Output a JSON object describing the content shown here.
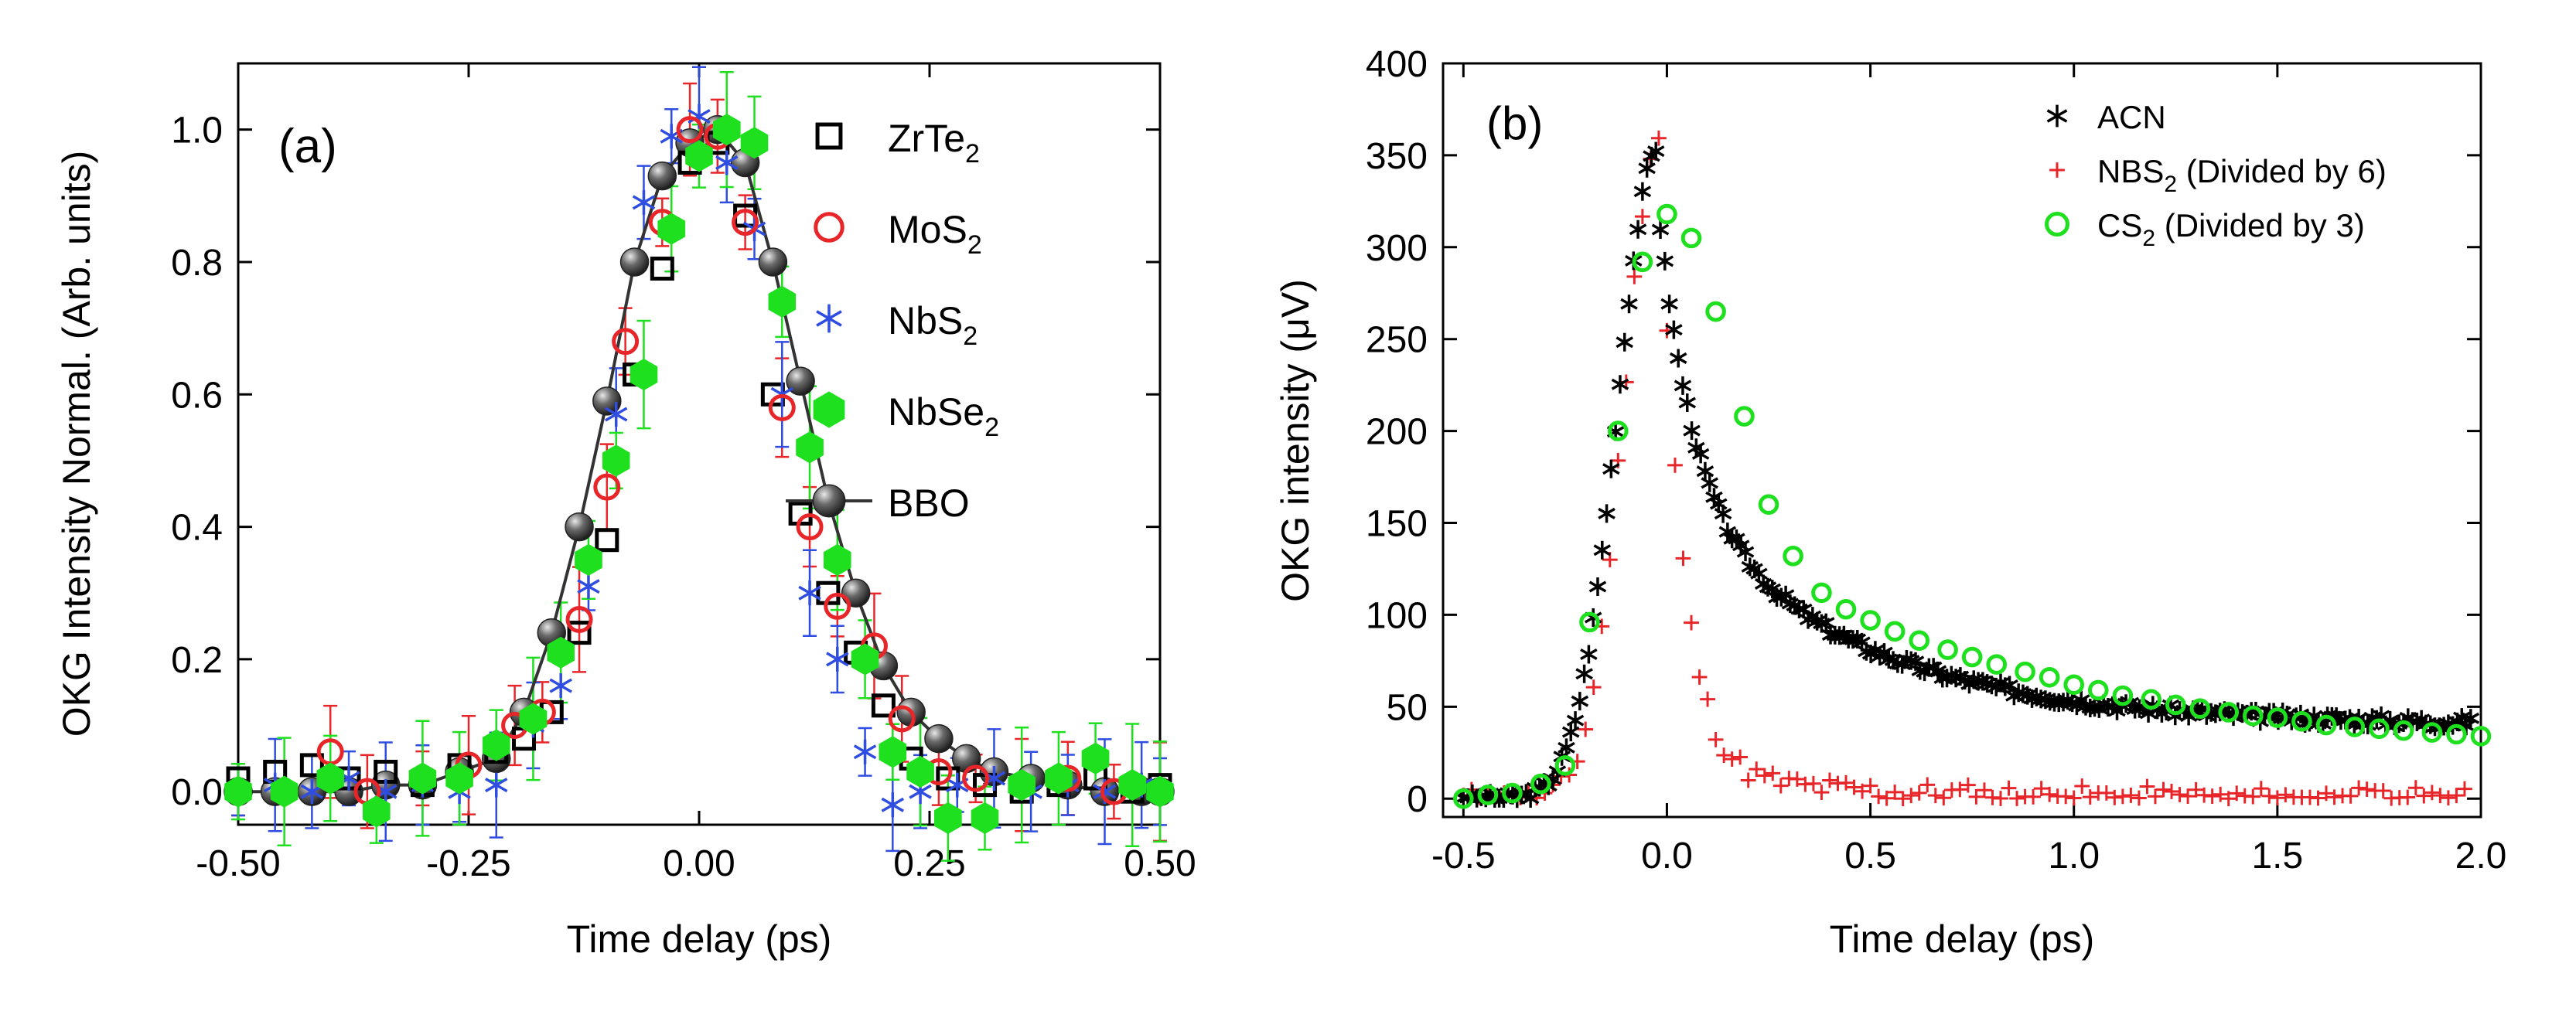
{
  "colors": {
    "black": "#000000",
    "red": "#e8262a",
    "blue": "#2f4de0",
    "green": "#1ee01e",
    "bbo": "#4a4a4a",
    "bboHi": "#cfcfcf"
  },
  "chart_data": [
    {
      "type": "scatter",
      "panel_label": "(a)",
      "xlabel": "Time delay (ps)",
      "ylabel": "OKG Intensity Normal. (Arb. units)",
      "xlim": [
        -0.5,
        0.5
      ],
      "ylim": [
        -0.05,
        1.1
      ],
      "xticks": [
        -0.5,
        -0.25,
        0.0,
        0.25,
        0.5
      ],
      "xtick_labels": [
        "-0.50",
        "-0.25",
        "0.00",
        "0.25",
        "0.50"
      ],
      "yticks": [
        0.0,
        0.2,
        0.4,
        0.6,
        0.8,
        1.0
      ],
      "ytick_labels": [
        "0.0",
        "0.2",
        "0.4",
        "0.6",
        "0.8",
        "1.0"
      ],
      "legend": [
        {
          "name": "ZrTe",
          "sub": "2",
          "marker": "open-square"
        },
        {
          "name": "MoS",
          "sub": "2",
          "marker": "open-circle"
        },
        {
          "name": "NbS",
          "sub": "2",
          "marker": "asterisk"
        },
        {
          "name": "NbSe",
          "sub": "2",
          "marker": "filled-hexagon"
        },
        {
          "name": "BBO",
          "sub": "",
          "marker": "sphere-line"
        }
      ],
      "series": [
        {
          "name": "ZrTe2",
          "marker": "open-square",
          "color": "#000000",
          "x": [
            -0.5,
            -0.46,
            -0.42,
            -0.38,
            -0.34,
            -0.3,
            -0.26,
            -0.22,
            -0.19,
            -0.16,
            -0.13,
            -0.1,
            -0.07,
            -0.04,
            -0.01,
            0.02,
            0.05,
            0.08,
            0.11,
            0.14,
            0.17,
            0.2,
            0.23,
            0.27,
            0.31,
            0.35,
            0.39,
            0.43,
            0.47,
            0.5
          ],
          "y": [
            0.02,
            0.03,
            0.04,
            0.02,
            0.03,
            0.01,
            0.04,
            0.06,
            0.08,
            0.12,
            0.24,
            0.38,
            0.63,
            0.79,
            0.95,
            0.98,
            0.87,
            0.6,
            0.42,
            0.3,
            0.21,
            0.13,
            0.05,
            0.02,
            0.01,
            0.0,
            0.01,
            0.02,
            0.0,
            0.01
          ]
        },
        {
          "name": "MoS2",
          "marker": "open-circle",
          "color": "#e8262a",
          "x": [
            -0.5,
            -0.4,
            -0.36,
            -0.3,
            -0.25,
            -0.2,
            -0.17,
            -0.13,
            -0.1,
            -0.08,
            -0.04,
            -0.01,
            0.02,
            0.05,
            0.09,
            0.12,
            0.15,
            0.19,
            0.22,
            0.26,
            0.3,
            0.35,
            0.4,
            0.45,
            0.5
          ],
          "y": [
            0.0,
            0.06,
            0.0,
            0.02,
            0.04,
            0.1,
            0.12,
            0.26,
            0.46,
            0.68,
            0.86,
            1.0,
            0.99,
            0.86,
            0.58,
            0.4,
            0.28,
            0.22,
            0.11,
            0.03,
            0.02,
            0.01,
            0.02,
            0.0,
            0.0
          ],
          "err": 0.06
        },
        {
          "name": "NbS2",
          "marker": "asterisk",
          "color": "#2f4de0",
          "x": [
            -0.5,
            -0.46,
            -0.42,
            -0.38,
            -0.34,
            -0.3,
            -0.26,
            -0.22,
            -0.18,
            -0.15,
            -0.12,
            -0.09,
            -0.06,
            -0.03,
            0.0,
            0.03,
            0.06,
            0.09,
            0.12,
            0.15,
            0.18,
            0.21,
            0.24,
            0.28,
            0.32,
            0.36,
            0.4,
            0.44,
            0.48,
            0.5
          ],
          "y": [
            0.0,
            0.01,
            0.0,
            0.02,
            0.0,
            0.01,
            0.0,
            0.01,
            0.1,
            0.16,
            0.31,
            0.57,
            0.89,
            0.99,
            1.02,
            0.95,
            0.85,
            0.6,
            0.3,
            0.2,
            0.06,
            -0.02,
            0.0,
            0.01,
            0.02,
            0.0,
            0.01,
            0.0,
            0.01,
            0.0
          ],
          "err": 0.06
        },
        {
          "name": "NbSe2",
          "marker": "filled-hexagon",
          "color": "#1ee01e",
          "x": [
            -0.5,
            -0.45,
            -0.4,
            -0.35,
            -0.3,
            -0.26,
            -0.22,
            -0.18,
            -0.15,
            -0.12,
            -0.09,
            -0.06,
            -0.03,
            0.0,
            0.03,
            0.06,
            0.09,
            0.12,
            0.15,
            0.18,
            0.21,
            0.24,
            0.27,
            0.31,
            0.35,
            0.39,
            0.43,
            0.47,
            0.5
          ],
          "y": [
            0.0,
            0.0,
            0.02,
            -0.03,
            0.02,
            0.02,
            0.07,
            0.11,
            0.21,
            0.35,
            0.5,
            0.63,
            0.85,
            0.96,
            1.0,
            0.98,
            0.74,
            0.52,
            0.35,
            0.2,
            0.06,
            0.03,
            -0.04,
            -0.04,
            0.01,
            0.02,
            0.05,
            0.01,
            0.0
          ],
          "err": 0.07
        },
        {
          "name": "BBO",
          "marker": "sphere-line",
          "color": "#4a4a4a",
          "x": [
            -0.5,
            -0.46,
            -0.42,
            -0.38,
            -0.34,
            -0.3,
            -0.26,
            -0.22,
            -0.19,
            -0.16,
            -0.13,
            -0.1,
            -0.07,
            -0.04,
            -0.01,
            0.02,
            0.05,
            0.08,
            0.11,
            0.14,
            0.17,
            0.2,
            0.23,
            0.26,
            0.29,
            0.32,
            0.36,
            0.4,
            0.44,
            0.48,
            0.5
          ],
          "y": [
            0.0,
            0.0,
            0.0,
            0.0,
            0.01,
            0.01,
            0.03,
            0.05,
            0.12,
            0.24,
            0.4,
            0.59,
            0.8,
            0.93,
            0.98,
            1.0,
            0.95,
            0.8,
            0.62,
            0.44,
            0.3,
            0.19,
            0.12,
            0.08,
            0.05,
            0.03,
            0.02,
            0.01,
            0.0,
            0.0,
            0.0
          ]
        }
      ]
    },
    {
      "type": "scatter",
      "panel_label": "(b)",
      "xlabel": "Time delay (ps)",
      "ylabel": "OKG intensity (μV)",
      "xlim": [
        -0.55,
        2.0
      ],
      "ylim": [
        -10,
        400
      ],
      "xticks": [
        -0.5,
        0.0,
        0.5,
        1.0,
        1.5,
        2.0
      ],
      "xtick_labels": [
        "-0.5",
        "0.0",
        "0.5",
        "1.0",
        "1.5",
        "2.0"
      ],
      "yticks": [
        0,
        50,
        100,
        150,
        200,
        250,
        300,
        350,
        400
      ],
      "ytick_labels": [
        "0",
        "50",
        "100",
        "150",
        "200",
        "250",
        "300",
        "350",
        "400"
      ],
      "legend": [
        {
          "name": "ACN",
          "sub": "",
          "rest": "",
          "marker": "asterisk"
        },
        {
          "name": "NBS",
          "sub": "2",
          "rest": " (Divided by 6)",
          "marker": "plus"
        },
        {
          "name": "CS",
          "sub": "2",
          "rest": " (Divided by 3)",
          "marker": "open-circle"
        }
      ],
      "series": [
        {
          "name": "ACN",
          "marker": "asterisk",
          "color": "#000000",
          "model": {
            "t0": -0.02,
            "peak": 355,
            "rise_sigma": 0.1,
            "decay": [
              [
                150,
                0.08
              ],
              [
                130,
                0.45
              ],
              [
                40,
                1000
              ]
            ],
            "step": 0.011,
            "noise": 3,
            "seed": 3
          }
        },
        {
          "name": "NBS2 (Divided by 6)",
          "marker": "plus",
          "color": "#e8262a",
          "model": {
            "t0": -0.02,
            "peak": 360,
            "rise_sigma": 0.085,
            "decay": [
              [
                345,
                0.055
              ],
              [
                15,
                0.4
              ]
            ],
            "step": 0.02,
            "noise": 6,
            "seed": 11
          }
        },
        {
          "name": "CS2 (Divided by 3)",
          "marker": "open-circle",
          "color": "#1ee01e",
          "x": [
            -0.5,
            -0.44,
            -0.38,
            -0.31,
            -0.25,
            -0.19,
            -0.12,
            -0.06,
            0.0,
            0.06,
            0.12,
            0.19,
            0.25,
            0.31,
            0.38,
            0.44,
            0.5,
            0.56,
            0.62,
            0.69,
            0.75,
            0.81,
            0.88,
            0.94,
            1.0,
            1.06,
            1.12,
            1.19,
            1.25,
            1.31,
            1.38,
            1.44,
            1.5,
            1.56,
            1.62,
            1.69,
            1.75,
            1.81,
            1.88,
            1.94,
            2.0
          ],
          "y": [
            0,
            2,
            3,
            8,
            18,
            96,
            200,
            292,
            318,
            305,
            265,
            208,
            160,
            132,
            112,
            103,
            97,
            91,
            86,
            81,
            77,
            73,
            69,
            66,
            62,
            59,
            56,
            54,
            51,
            49,
            47,
            45,
            44,
            42,
            40,
            39,
            38,
            37,
            36,
            35,
            34
          ]
        }
      ]
    }
  ]
}
